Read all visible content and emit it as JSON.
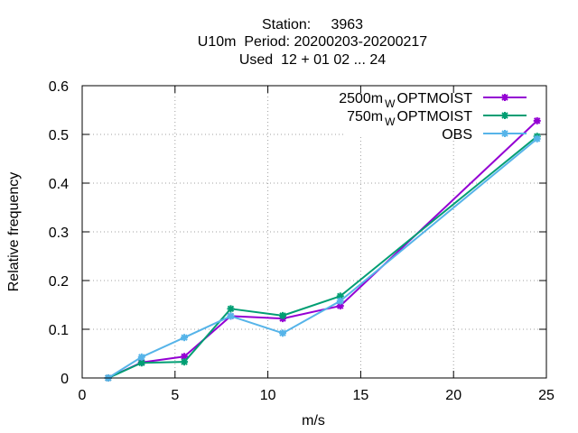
{
  "chart_data": {
    "type": "line",
    "title": {
      "line1": "Station:     3963",
      "line2": "U10m  Period: 20200203-20200217",
      "line3": "Used  12 + 01 02 ... 24"
    },
    "xlabel": "m/s",
    "ylabel": "Relative frequency",
    "xlim": [
      0,
      25
    ],
    "ylim": [
      0,
      0.6
    ],
    "xticks": [
      0,
      5,
      10,
      15,
      20,
      25
    ],
    "yticks": [
      0,
      0.1,
      0.2,
      0.3,
      0.4,
      0.5,
      0.6
    ],
    "xtick_labels": [
      "0",
      "5",
      "10",
      "15",
      "20",
      "25"
    ],
    "ytick_labels": [
      "0",
      "0.1",
      "0.2",
      "0.3",
      "0.4",
      "0.5",
      "0.6"
    ],
    "grid": true,
    "legend_position": "top-right",
    "series": [
      {
        "name": "2500m",
        "name_sub": "W",
        "name_suffix": "OPTMOIST",
        "color": "#9400d3",
        "x": [
          1.4,
          3.2,
          5.5,
          8.0,
          10.8,
          13.9,
          24.5
        ],
        "y": [
          0.0,
          0.032,
          0.044,
          0.127,
          0.122,
          0.148,
          0.528
        ]
      },
      {
        "name": "750m",
        "name_sub": "W",
        "name_suffix": "OPTMOIST",
        "color": "#009e73",
        "x": [
          1.4,
          3.2,
          5.5,
          8.0,
          10.8,
          13.9,
          24.5
        ],
        "y": [
          0.0,
          0.031,
          0.033,
          0.142,
          0.128,
          0.168,
          0.496
        ]
      },
      {
        "name": "OBS",
        "name_sub": "",
        "name_suffix": "",
        "color": "#56b4e9",
        "x": [
          1.4,
          3.2,
          5.5,
          8.0,
          10.8,
          13.9,
          24.5
        ],
        "y": [
          0.0,
          0.043,
          0.083,
          0.127,
          0.092,
          0.158,
          0.491
        ]
      }
    ]
  }
}
